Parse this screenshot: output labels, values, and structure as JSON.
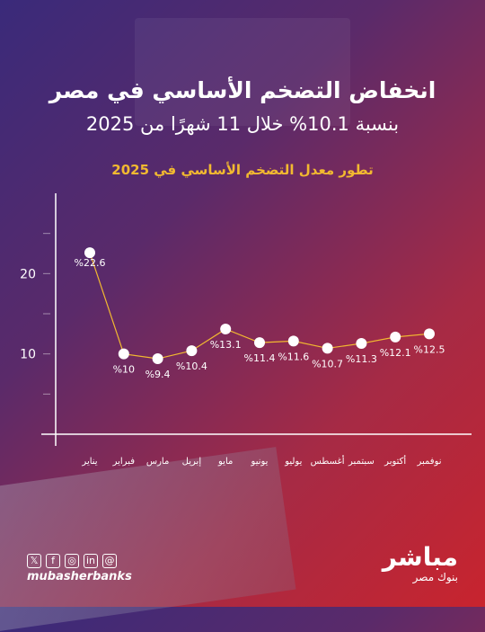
{
  "title": "انخفاض التضخم الأساسي في مصر",
  "subtitle": "بنسبة 10.1% خلال 11 شهرًا من 2025",
  "brand": {
    "logo": "مباشر",
    "logo_sub": "بنوك مصر",
    "handle": "mubasherbanks",
    "social_icons": [
      "x-icon",
      "facebook-icon",
      "instagram-icon",
      "linkedin-icon",
      "threads-icon"
    ]
  },
  "colors": {
    "accent": "#f2b930",
    "line": "#f2b930",
    "point": "#ffffff",
    "axis": "#ffffff"
  },
  "chart_data": {
    "type": "line",
    "title": "تطور معدل التضخم الأساسي في 2025",
    "categories": [
      "يناير",
      "فبراير",
      "مارس",
      "إبريل",
      "مايو",
      "يونيو",
      "يوليو",
      "أغسطس",
      "سبتمبر",
      "أكتوبر",
      "نوفمبر"
    ],
    "values": [
      22.6,
      10,
      9.4,
      10.4,
      13.1,
      11.4,
      11.6,
      10.7,
      11.3,
      12.1,
      12.5
    ],
    "data_labels": [
      "%22.6",
      "%10",
      "%9.4",
      "%10.4",
      "%13.1",
      "%11.4",
      "%11.6",
      "%10.7",
      "%11.3",
      "%12.1",
      "%12.5"
    ],
    "y_ticks": [
      10,
      20
    ],
    "ylim": [
      0,
      30
    ],
    "grid": false
  }
}
